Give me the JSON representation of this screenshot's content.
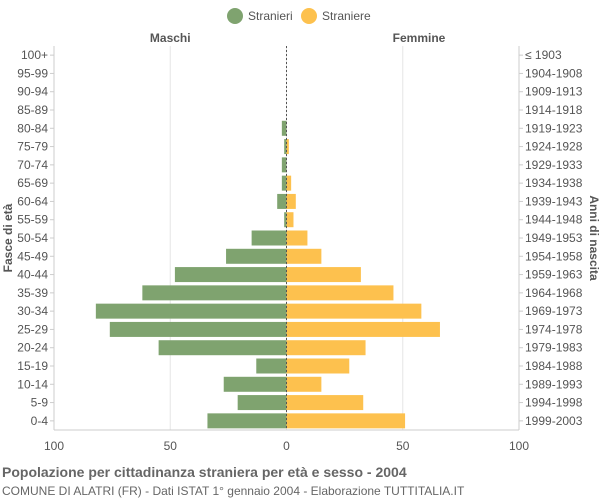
{
  "chart_data": {
    "type": "bar",
    "orientation": "horizontal-population-pyramid",
    "title": "Popolazione per cittadinanza straniera per età e sesso - 2004",
    "subtitle": "COMUNE DI ALATRI (FR) - Dati ISTAT 1° gennaio 2004 - Elaborazione TUTTITALIA.IT",
    "left_header": "Maschi",
    "right_header": "Femmine",
    "ylabel_left": "Fasce di età",
    "ylabel_right": "Anni di nascita",
    "xlim": [
      -100,
      100
    ],
    "x_ticks": [
      -100,
      -50,
      0,
      50,
      100
    ],
    "x_tick_labels": [
      "100",
      "50",
      "0",
      "50",
      "100"
    ],
    "grid": true,
    "legend_position": "top-center",
    "categories": [
      "100+",
      "95-99",
      "90-94",
      "85-89",
      "80-84",
      "75-79",
      "70-74",
      "65-69",
      "60-64",
      "55-59",
      "50-54",
      "45-49",
      "40-44",
      "35-39",
      "30-34",
      "25-29",
      "20-24",
      "15-19",
      "10-14",
      "5-9",
      "0-4"
    ],
    "birth_years": [
      "≤ 1903",
      "1904-1908",
      "1909-1913",
      "1914-1918",
      "1919-1923",
      "1924-1928",
      "1929-1933",
      "1934-1938",
      "1939-1943",
      "1944-1948",
      "1949-1953",
      "1954-1958",
      "1959-1963",
      "1964-1968",
      "1969-1973",
      "1974-1978",
      "1979-1983",
      "1984-1988",
      "1989-1993",
      "1994-1998",
      "1999-2003"
    ],
    "series": [
      {
        "name": "Stranieri",
        "side": "left",
        "color": "#7fa36f",
        "values": [
          0,
          0,
          0,
          0,
          2,
          1,
          2,
          2,
          4,
          1,
          15,
          26,
          48,
          62,
          82,
          76,
          55,
          13,
          27,
          21,
          34
        ]
      },
      {
        "name": "Straniere",
        "side": "right",
        "color": "#fdc14e",
        "values": [
          0,
          0,
          0,
          0,
          0,
          1,
          0,
          2,
          4,
          3,
          9,
          15,
          32,
          46,
          58,
          66,
          34,
          27,
          15,
          33,
          51
        ]
      }
    ]
  }
}
